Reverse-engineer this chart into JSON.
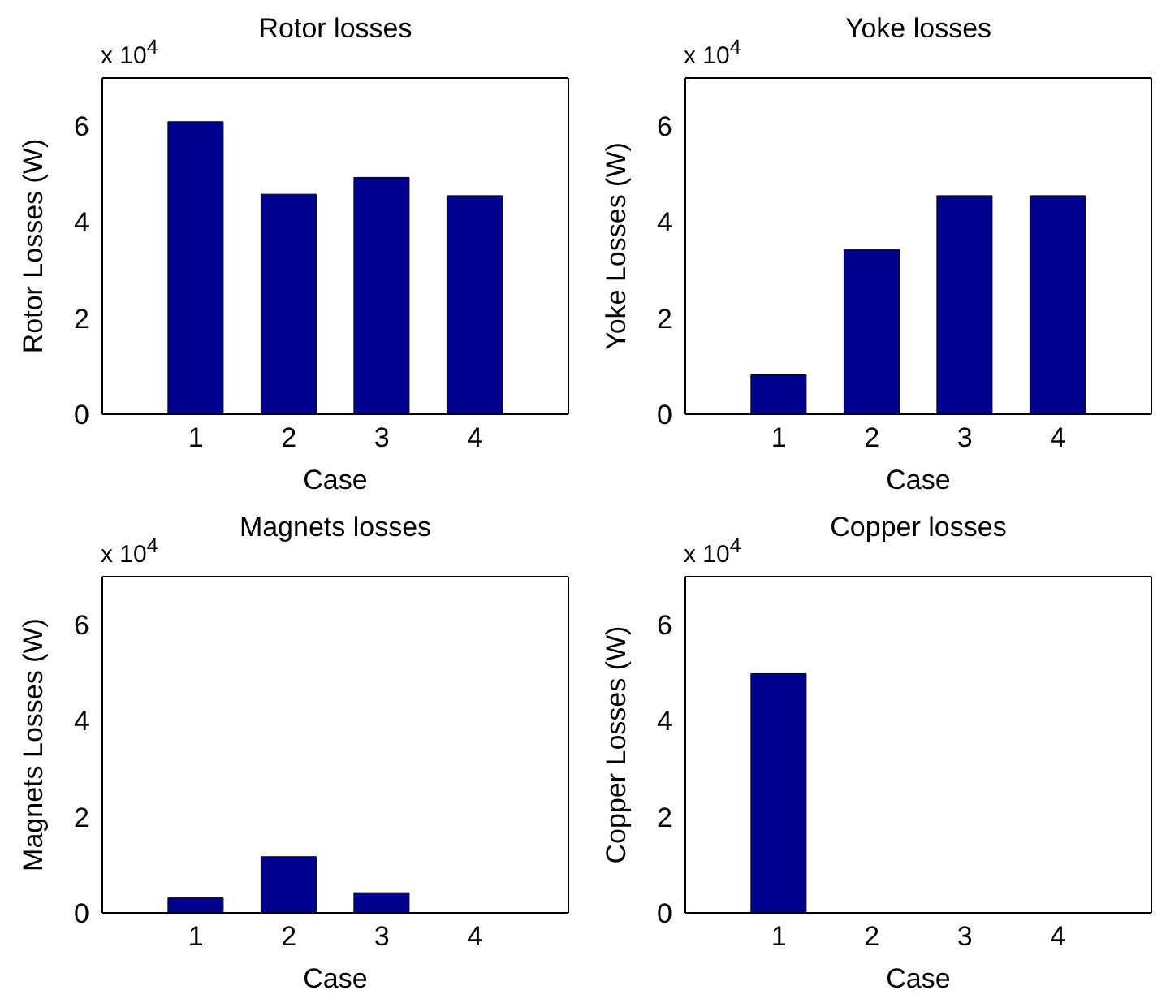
{
  "chart_data": [
    {
      "type": "bar",
      "title": "Rotor losses",
      "xlabel": "Case",
      "ylabel": "Rotor Losses (W)",
      "categories": [
        "1",
        "2",
        "3",
        "4"
      ],
      "values": [
        6.09,
        4.58,
        4.93,
        4.55
      ],
      "color": "#00008f",
      "ylim": [
        0,
        7
      ],
      "yticks": [
        0,
        2,
        4,
        6
      ],
      "annotations": [
        "x 10$^{4}$"
      ]
    },
    {
      "type": "bar",
      "title": "Yoke losses",
      "xlabel": "Case",
      "ylabel": "Yoke Losses (W)",
      "categories": [
        "1",
        "2",
        "3",
        "4"
      ],
      "values": [
        0.82,
        3.43,
        4.55,
        4.55
      ],
      "color": "#00008f",
      "ylim": [
        0,
        7
      ],
      "yticks": [
        0,
        2,
        4,
        6
      ],
      "annotations": [
        "x 10$^{4}$"
      ]
    },
    {
      "type": "bar",
      "title": "Magnets losses",
      "xlabel": "Case",
      "ylabel": "Magnets Losses (W)",
      "categories": [
        "1",
        "2",
        "3",
        "4"
      ],
      "values": [
        0.31,
        1.17,
        0.42,
        0
      ],
      "color": "#00008f",
      "ylim": [
        0,
        7
      ],
      "yticks": [
        0,
        2,
        4,
        6
      ],
      "annotations": [
        "x 10$^{4}$"
      ]
    },
    {
      "type": "bar",
      "title": "Copper losses",
      "xlabel": "Case",
      "ylabel": "Copper Losses (W)",
      "categories": [
        "1",
        "2",
        "3",
        "4"
      ],
      "values": [
        4.98,
        0,
        0,
        0
      ],
      "color": "#00008f",
      "ylim": [
        0,
        7
      ],
      "yticks": [
        0,
        2,
        4,
        6
      ],
      "annotations": [
        "x 10$^{4}$"
      ]
    }
  ]
}
